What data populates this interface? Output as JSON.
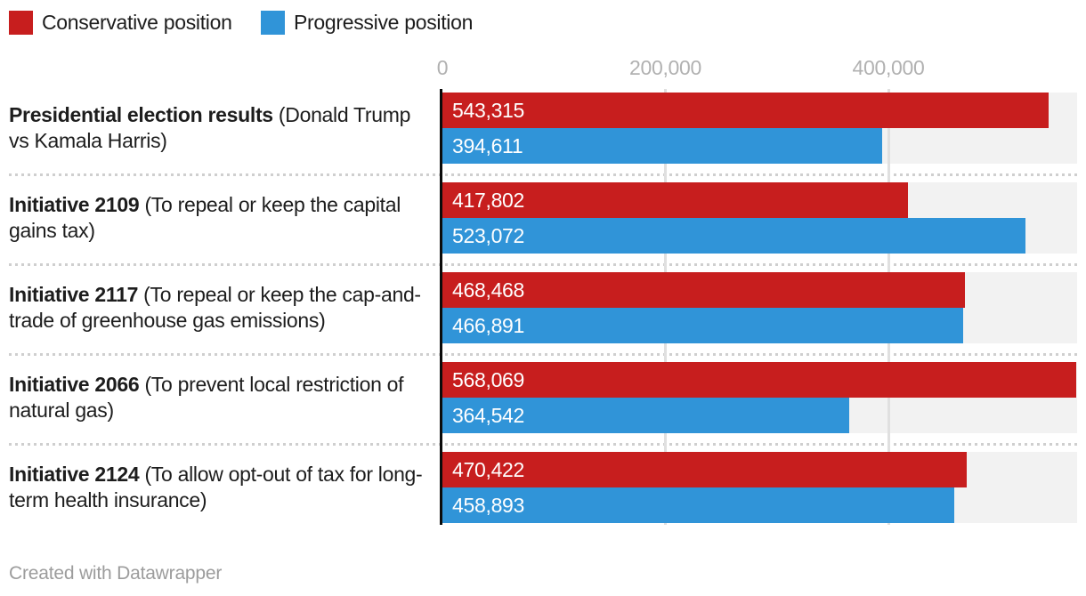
{
  "legend": {
    "items": [
      {
        "label": "Conservative position",
        "color": "#c71e1e"
      },
      {
        "label": "Progressive position",
        "color": "#3094d8"
      }
    ]
  },
  "axis": {
    "ticks": [
      {
        "label": "0",
        "value": 0
      },
      {
        "label": "200,000",
        "value": 200000
      },
      {
        "label": "400,000",
        "value": 400000
      }
    ]
  },
  "chart_data": {
    "type": "bar",
    "orientation": "horizontal",
    "title": "",
    "categories": [
      "Presidential election results (Donald Trump vs Kamala Harris)",
      "Initiative 2109 (To repeal or keep the capital gains tax)",
      "Initiative 2117 (To repeal or keep the cap-and-trade of greenhouse gas emissions)",
      "Initiative 2066 (To prevent local restriction of natural gas)",
      "Initiative 2124 (To allow opt-out of tax for long-term health insurance)"
    ],
    "series": [
      {
        "name": "Conservative position",
        "color": "#c71e1e",
        "values": [
          543315,
          417802,
          468468,
          568069,
          470422
        ]
      },
      {
        "name": "Progressive position",
        "color": "#3094d8",
        "values": [
          394611,
          523072,
          466891,
          364542,
          458893
        ]
      }
    ],
    "x_tick_labels": [
      "0",
      "200,000",
      "400,000"
    ],
    "xlim": [
      0,
      569000
    ],
    "grid": true,
    "legend_position": "top-left",
    "value_labels_shown": true
  },
  "rows": [
    {
      "label_bold": "Presidential election results",
      "label_rest": " (Donald Trump vs Kamala Harris)",
      "values_display": [
        "543,315",
        "394,611"
      ]
    },
    {
      "label_bold": "Initiative 2109",
      "label_rest": " (To repeal or keep the capital gains tax)",
      "values_display": [
        "417,802",
        "523,072"
      ]
    },
    {
      "label_bold": "Initiative 2117",
      "label_rest": " (To repeal or keep the cap-and-trade of greenhouse gas emissions)",
      "values_display": [
        "468,468",
        "466,891"
      ]
    },
    {
      "label_bold": "Initiative 2066",
      "label_rest": " (To prevent local restriction of natural gas)",
      "values_display": [
        "568,069",
        "364,542"
      ]
    },
    {
      "label_bold": "Initiative 2124",
      "label_rest": " (To allow opt-out of tax for long-term health insurance)",
      "values_display": [
        "470,422",
        "458,893"
      ]
    }
  ],
  "footer": {
    "credit": "Created with Datawrapper"
  },
  "palette": {
    "row_background": "#f2f2f2",
    "gridline": "#e0e0e0",
    "axis_line": "#0b0b0b",
    "separator_dots": "#cfcfcf",
    "tick_text": "#b1b1b1",
    "label_text": "#1d1d1d",
    "value_text": "#ffffff",
    "credit_text": "#9c9c9c"
  }
}
